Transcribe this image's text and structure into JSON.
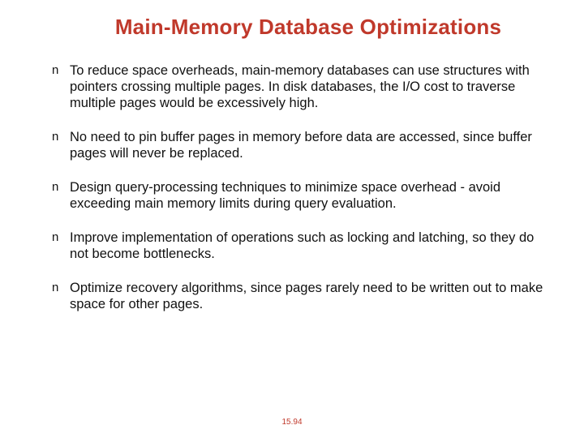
{
  "title": {
    "text": "Main-Memory Database Optimizations",
    "color": "#c0392b"
  },
  "bullet_marker": "n",
  "bullets": [
    "To reduce space overheads, main-memory databases can use structures with pointers crossing multiple pages. In disk databases, the I/O cost to traverse multiple pages would be excessively high.",
    "No need to pin buffer pages in memory before data are accessed, since buffer pages will never be replaced.",
    "Design query-processing techniques to minimize space overhead - avoid exceeding main memory limits during query evaluation.",
    "Improve implementation of operations such as locking and latching, so they do not become bottlenecks.",
    "Optimize recovery algorithms, since pages rarely need to be written out to make space for other pages."
  ],
  "footer": {
    "text": "15.94",
    "color": "#c0392b"
  }
}
